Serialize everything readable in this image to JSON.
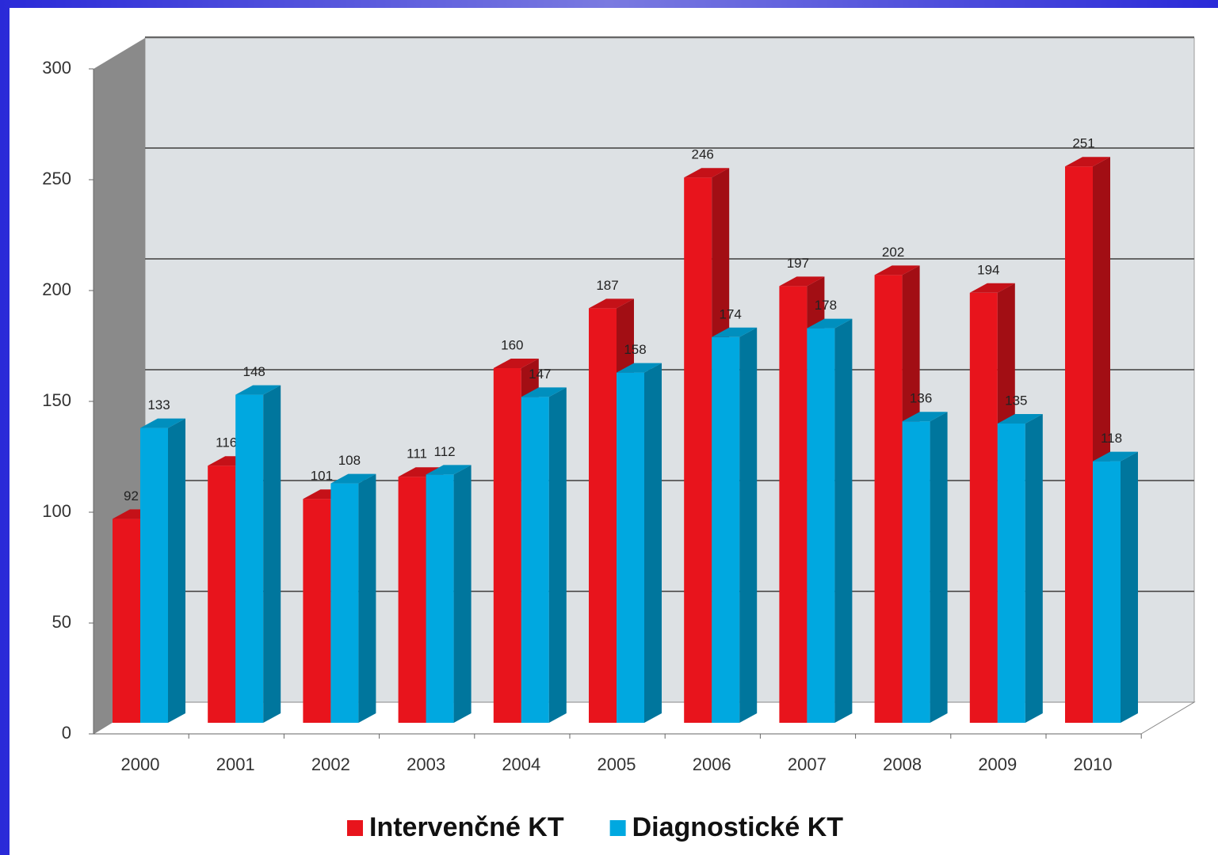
{
  "chart_data": {
    "type": "bar3d",
    "categories": [
      "2000",
      "2001",
      "2002",
      "2003",
      "2004",
      "2005",
      "2006",
      "2007",
      "2008",
      "2009",
      "2010"
    ],
    "series": [
      {
        "name": "Intervenčné KT",
        "color": "#e8141c",
        "values": [
          92,
          116,
          101,
          111,
          160,
          187,
          246,
          197,
          202,
          194,
          251
        ]
      },
      {
        "name": "Diagnostické KT",
        "color": "#00a8e0",
        "values": [
          133,
          148,
          108,
          112,
          147,
          158,
          174,
          178,
          136,
          135,
          118
        ]
      }
    ],
    "ylim": [
      0,
      300
    ],
    "yticks": [
      0,
      50,
      100,
      150,
      200,
      250,
      300
    ],
    "grid": true,
    "legend": "bottom"
  }
}
